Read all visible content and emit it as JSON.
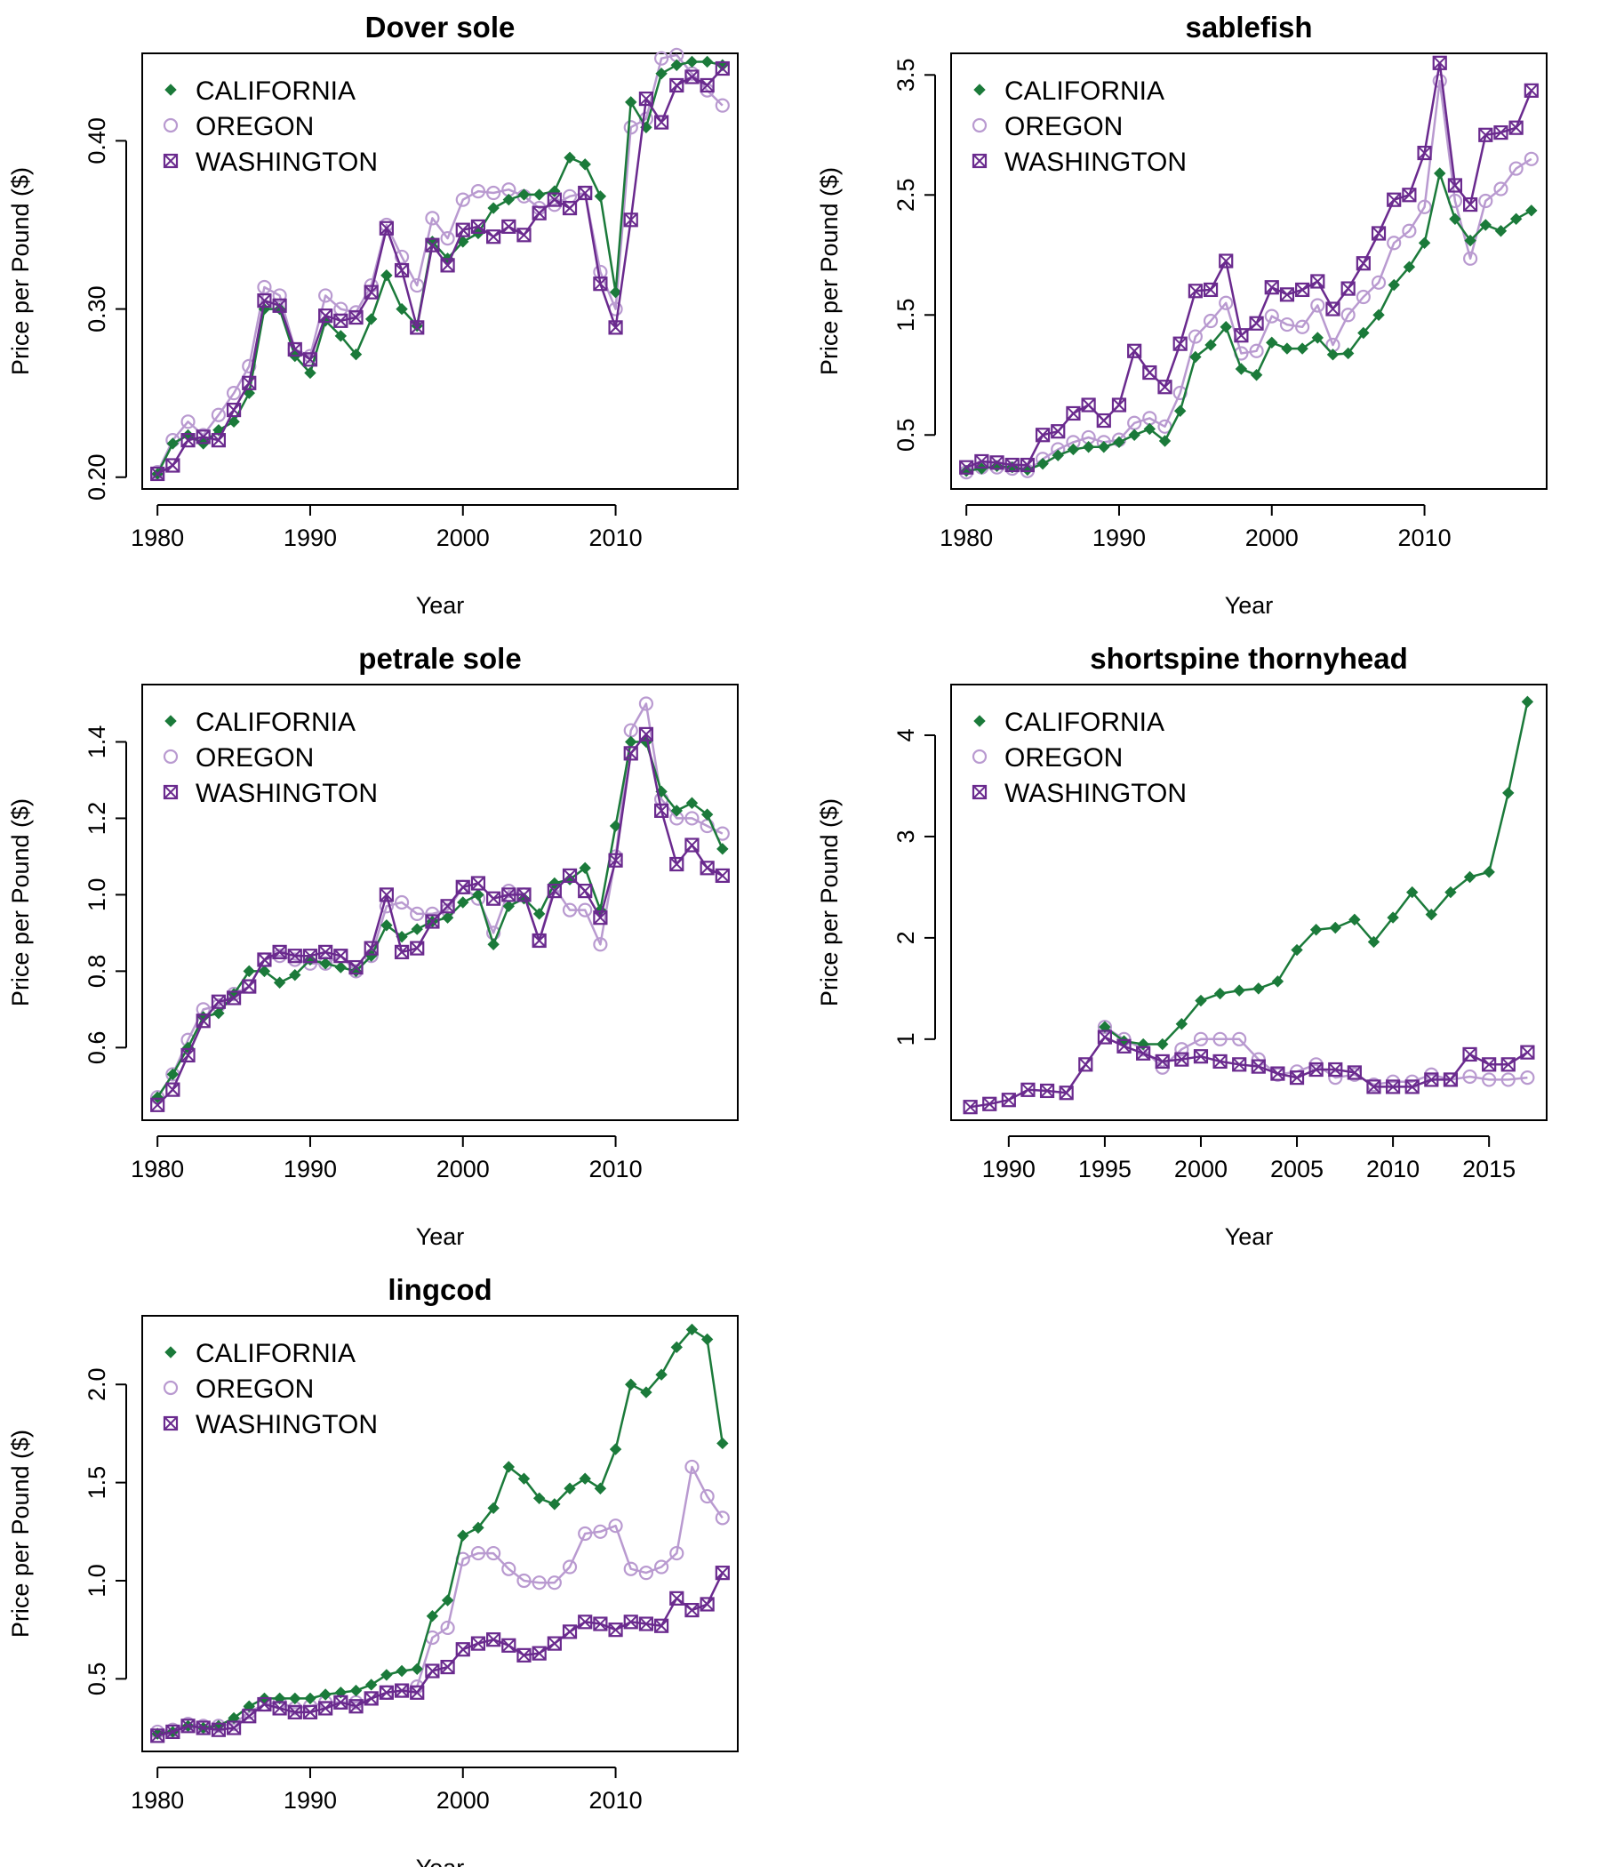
{
  "colors": {
    "CALIFORNIA": "#1b7a3a",
    "OREGON": "#b99ad0",
    "WASHINGTON": "#6a2a8e"
  },
  "chart_data": [
    {
      "type": "line",
      "title": "Dover sole",
      "xlabel": "Year",
      "ylabel": "Price per Pound ($)",
      "xlim": [
        1979,
        2018
      ],
      "ylim": [
        0.193,
        0.452
      ],
      "xticks": [
        1980,
        1990,
        2000,
        2010
      ],
      "yticks": [
        0.2,
        0.3,
        0.4
      ],
      "ytick_labels": [
        "0.20",
        "0.30",
        "0.40"
      ],
      "legend_position": "top-left",
      "grid": false,
      "series": [
        {
          "name": "CALIFORNIA",
          "start_year": 1980,
          "values": [
            0.202,
            0.22,
            0.225,
            0.22,
            0.228,
            0.233,
            0.25,
            0.3,
            0.3,
            0.272,
            0.262,
            0.293,
            0.284,
            0.273,
            0.294,
            0.32,
            0.3,
            0.29,
            0.34,
            0.33,
            0.34,
            0.345,
            0.36,
            0.365,
            0.368,
            0.368,
            0.37,
            0.39,
            0.386,
            0.367,
            0.31,
            0.423,
            0.408,
            0.44,
            0.445,
            0.447,
            0.447,
            0.445
          ]
        },
        {
          "name": "OREGON",
          "start_year": 1980,
          "values": [
            0.203,
            0.222,
            0.233,
            0.225,
            0.237,
            0.25,
            0.266,
            0.313,
            0.308,
            0.276,
            0.272,
            0.308,
            0.3,
            0.298,
            0.314,
            0.35,
            0.331,
            0.314,
            0.354,
            0.342,
            0.365,
            0.37,
            0.369,
            0.371,
            0.367,
            0.36,
            0.362,
            0.367,
            0.369,
            0.322,
            0.3,
            0.408,
            0.413,
            0.449,
            0.451,
            0.44,
            0.43,
            0.421
          ]
        },
        {
          "name": "WASHINGTON",
          "start_year": 1980,
          "values": [
            0.202,
            0.207,
            0.222,
            0.224,
            0.222,
            0.24,
            0.256,
            0.305,
            0.302,
            0.276,
            0.27,
            0.296,
            0.293,
            0.295,
            0.31,
            0.348,
            0.323,
            0.289,
            0.338,
            0.326,
            0.347,
            0.349,
            0.343,
            0.349,
            0.344,
            0.357,
            0.365,
            0.36,
            0.369,
            0.315,
            0.289,
            0.353,
            0.425,
            0.411,
            0.433,
            0.438,
            0.433,
            0.443
          ]
        }
      ]
    },
    {
      "type": "line",
      "title": "sablefish",
      "xlabel": "Year",
      "ylabel": "Price per Pound ($)",
      "xlim": [
        1979,
        2018
      ],
      "ylim": [
        0.05,
        3.68
      ],
      "xticks": [
        1980,
        1990,
        2000,
        2010
      ],
      "yticks": [
        0.5,
        1.5,
        2.5,
        3.5
      ],
      "ytick_labels": [
        "0.5",
        "1.5",
        "2.5",
        "3.5"
      ],
      "legend_position": "top-left",
      "grid": false,
      "series": [
        {
          "name": "CALIFORNIA",
          "start_year": 1980,
          "values": [
            0.2,
            0.22,
            0.24,
            0.23,
            0.21,
            0.26,
            0.33,
            0.38,
            0.4,
            0.4,
            0.44,
            0.5,
            0.55,
            0.45,
            0.7,
            1.15,
            1.25,
            1.4,
            1.05,
            1.0,
            1.27,
            1.22,
            1.22,
            1.31,
            1.17,
            1.18,
            1.35,
            1.5,
            1.75,
            1.9,
            2.1,
            2.68,
            2.3,
            2.12,
            2.25,
            2.2,
            2.3,
            2.37
          ]
        },
        {
          "name": "OREGON",
          "start_year": 1980,
          "values": [
            0.19,
            0.23,
            0.23,
            0.22,
            0.2,
            0.3,
            0.38,
            0.44,
            0.48,
            0.44,
            0.46,
            0.6,
            0.64,
            0.57,
            0.85,
            1.32,
            1.45,
            1.6,
            1.18,
            1.2,
            1.49,
            1.42,
            1.4,
            1.58,
            1.25,
            1.5,
            1.65,
            1.77,
            2.1,
            2.2,
            2.4,
            3.45,
            2.45,
            1.97,
            2.45,
            2.55,
            2.72,
            2.8
          ]
        },
        {
          "name": "WASHINGTON",
          "start_year": 1980,
          "values": [
            0.23,
            0.28,
            0.27,
            0.25,
            0.25,
            0.5,
            0.53,
            0.68,
            0.75,
            0.62,
            0.75,
            1.2,
            1.02,
            0.9,
            1.26,
            1.7,
            1.71,
            1.95,
            1.33,
            1.43,
            1.73,
            1.67,
            1.71,
            1.78,
            1.55,
            1.72,
            1.93,
            2.18,
            2.46,
            2.5,
            2.85,
            3.6,
            2.58,
            2.42,
            3.0,
            3.02,
            3.06,
            3.37
          ]
        }
      ]
    },
    {
      "type": "line",
      "title": "petrale sole",
      "xlabel": "Year",
      "ylabel": "Price per Pound ($)",
      "xlim": [
        1979,
        2018
      ],
      "ylim": [
        0.41,
        1.55
      ],
      "xticks": [
        1980,
        1990,
        2000,
        2010
      ],
      "yticks": [
        0.6,
        0.8,
        1.0,
        1.2,
        1.4
      ],
      "ytick_labels": [
        "0.6",
        "0.8",
        "1.0",
        "1.2",
        "1.4"
      ],
      "legend_position": "top-left",
      "grid": false,
      "series": [
        {
          "name": "CALIFORNIA",
          "start_year": 1980,
          "values": [
            0.47,
            0.53,
            0.6,
            0.68,
            0.69,
            0.74,
            0.8,
            0.8,
            0.77,
            0.79,
            0.83,
            0.82,
            0.81,
            0.8,
            0.84,
            0.92,
            0.89,
            0.91,
            0.93,
            0.94,
            0.98,
            1.0,
            0.87,
            0.97,
            0.99,
            0.95,
            1.03,
            1.04,
            1.07,
            0.96,
            1.18,
            1.4,
            1.4,
            1.27,
            1.22,
            1.24,
            1.21,
            1.12
          ]
        },
        {
          "name": "OREGON",
          "start_year": 1980,
          "values": [
            0.47,
            0.53,
            0.62,
            0.7,
            0.71,
            0.74,
            0.76,
            0.83,
            0.84,
            0.83,
            0.82,
            0.82,
            0.84,
            0.8,
            0.84,
            0.97,
            0.98,
            0.95,
            0.95,
            0.96,
            1.02,
            0.99,
            0.9,
            1.01,
            1.0,
            0.88,
            1.02,
            0.96,
            0.96,
            0.87,
            1.1,
            1.43,
            1.5,
            1.25,
            1.2,
            1.2,
            1.18,
            1.16
          ]
        },
        {
          "name": "WASHINGTON",
          "start_year": 1980,
          "values": [
            0.45,
            0.49,
            0.58,
            0.67,
            0.72,
            0.73,
            0.76,
            0.83,
            0.85,
            0.84,
            0.84,
            0.85,
            0.84,
            0.81,
            0.86,
            1.0,
            0.85,
            0.86,
            0.93,
            0.97,
            1.02,
            1.03,
            0.99,
            1.0,
            1.0,
            0.88,
            1.01,
            1.05,
            1.01,
            0.94,
            1.09,
            1.37,
            1.42,
            1.22,
            1.08,
            1.13,
            1.07,
            1.05
          ]
        }
      ]
    },
    {
      "type": "line",
      "title": "shortspine thornyhead",
      "xlabel": "Year",
      "ylabel": "Price per Pound ($)",
      "xlim": [
        1987,
        2018
      ],
      "ylim": [
        0.2,
        4.5
      ],
      "xticks": [
        1990,
        1995,
        2000,
        2005,
        2010,
        2015
      ],
      "yticks": [
        1,
        2,
        3,
        4
      ],
      "ytick_labels": [
        "1",
        "2",
        "3",
        "4"
      ],
      "legend_position": "top-left",
      "grid": false,
      "series": [
        {
          "name": "CALIFORNIA",
          "start_year": 1995,
          "values": [
            1.12,
            0.98,
            0.95,
            0.95,
            1.15,
            1.38,
            1.45,
            1.48,
            1.5,
            1.57,
            1.88,
            2.08,
            2.1,
            2.18,
            1.96,
            2.2,
            2.45,
            2.23,
            2.45,
            2.6,
            2.65,
            3.43,
            4.33
          ]
        },
        {
          "name": "OREGON",
          "start_year": 1995,
          "values": [
            1.12,
            1.0,
            0.9,
            0.72,
            0.9,
            1.0,
            1.0,
            1.0,
            0.8,
            0.65,
            0.68,
            0.75,
            0.62,
            0.65,
            0.55,
            0.58,
            0.58,
            0.65,
            0.6,
            0.63,
            0.6,
            0.6,
            0.62
          ]
        },
        {
          "name": "WASHINGTON",
          "start_year": 1988,
          "values": [
            0.33,
            0.36,
            0.4,
            0.5,
            0.49,
            0.47,
            0.75,
            1.02,
            0.93,
            0.86,
            0.78,
            0.8,
            0.83,
            0.78,
            0.75,
            0.73,
            0.66,
            0.62,
            0.7,
            0.7,
            0.67,
            0.53,
            0.53,
            0.53,
            0.6,
            0.6,
            0.85,
            0.75,
            0.75,
            0.87
          ]
        }
      ]
    },
    {
      "type": "line",
      "title": "lingcod",
      "xlabel": "Year",
      "ylabel": "Price per Pound ($)",
      "xlim": [
        1979,
        2018
      ],
      "ylim": [
        0.13,
        2.35
      ],
      "xticks": [
        1980,
        1990,
        2000,
        2010
      ],
      "yticks": [
        0.5,
        1.0,
        1.5,
        2.0
      ],
      "ytick_labels": [
        "0.5",
        "1.0",
        "1.5",
        "2.0"
      ],
      "legend_position": "top-left",
      "grid": false,
      "series": [
        {
          "name": "CALIFORNIA",
          "start_year": 1980,
          "values": [
            0.22,
            0.23,
            0.26,
            0.25,
            0.26,
            0.3,
            0.36,
            0.4,
            0.4,
            0.4,
            0.4,
            0.42,
            0.43,
            0.44,
            0.47,
            0.52,
            0.54,
            0.55,
            0.82,
            0.9,
            1.23,
            1.27,
            1.37,
            1.58,
            1.52,
            1.42,
            1.39,
            1.47,
            1.52,
            1.47,
            1.67,
            2.0,
            1.96,
            2.05,
            2.19,
            2.28,
            2.23,
            1.7
          ]
        },
        {
          "name": "OREGON",
          "start_year": 1980,
          "values": [
            0.23,
            0.24,
            0.27,
            0.26,
            0.26,
            0.27,
            0.33,
            0.37,
            0.38,
            0.35,
            0.36,
            0.38,
            0.38,
            0.38,
            0.4,
            0.43,
            0.44,
            0.46,
            0.71,
            0.76,
            1.11,
            1.14,
            1.14,
            1.06,
            1.0,
            0.99,
            0.99,
            1.07,
            1.24,
            1.25,
            1.28,
            1.06,
            1.04,
            1.07,
            1.14,
            1.58,
            1.43,
            1.32
          ]
        },
        {
          "name": "WASHINGTON",
          "start_year": 1980,
          "values": [
            0.21,
            0.23,
            0.26,
            0.25,
            0.24,
            0.25,
            0.31,
            0.37,
            0.35,
            0.33,
            0.33,
            0.35,
            0.38,
            0.36,
            0.4,
            0.43,
            0.44,
            0.43,
            0.54,
            0.56,
            0.65,
            0.68,
            0.7,
            0.67,
            0.62,
            0.63,
            0.68,
            0.74,
            0.79,
            0.78,
            0.75,
            0.79,
            0.78,
            0.77,
            0.91,
            0.85,
            0.88,
            1.04
          ]
        }
      ]
    }
  ]
}
